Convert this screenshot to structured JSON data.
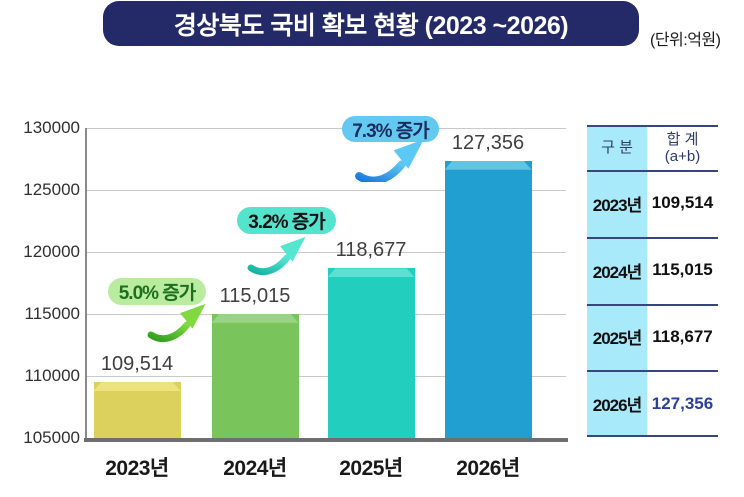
{
  "header": {
    "title": "경상북도 국비 확보 현황 (2023 ~2026)",
    "unit": "(단위:억원)",
    "banner_color": "#232a67"
  },
  "chart_data": {
    "type": "bar",
    "title": "경상북도 국비 확보 현황 (2023 ~2026)",
    "unit_note": "(단위:억원)",
    "categories": [
      "2023년",
      "2024년",
      "2025년",
      "2026년"
    ],
    "values": [
      109514,
      115015,
      118677,
      127356
    ],
    "value_labels": [
      "109,514",
      "115,015",
      "118,677",
      "127,356"
    ],
    "ylim": [
      105000,
      130000
    ],
    "yticks": [
      130000,
      125000,
      120000,
      115000,
      110000,
      105000
    ],
    "grid": true,
    "bar_colors": [
      {
        "body": "#ddd15e",
        "top": "#ece27f"
      },
      {
        "body": "#79c55c",
        "top": "#97d584"
      },
      {
        "body": "#22cfbf",
        "top": "#5de0d2"
      },
      {
        "body": "#219fd1",
        "top": "#63c4e2"
      }
    ],
    "annotations": [
      {
        "text": "5.0% 증가",
        "bubble_bg": "#b9ec9e",
        "text_color": "#1d6f1d",
        "arrow_dark": "#2e9e1f",
        "arrow_light": "#7fd93f"
      },
      {
        "text": "3.2% 증가",
        "bubble_bg": "#54e3cd",
        "text_color": "#111111",
        "arrow_dark": "#12b3a2",
        "arrow_light": "#55e6d2"
      },
      {
        "text": "7.3% 증가",
        "bubble_bg": "#63c9f0",
        "text_color": "#1a2b5e",
        "arrow_dark": "#1976d8",
        "arrow_light": "#5bc8f5"
      }
    ]
  },
  "table": {
    "header": {
      "col1": "구 분",
      "col2_line1": "합 계",
      "col2_line2": "(a+b)"
    },
    "rows": [
      {
        "year": "2023년",
        "value": "109,514",
        "value_color": "#101010"
      },
      {
        "year": "2024년",
        "value": "115,015",
        "value_color": "#101010"
      },
      {
        "year": "2025년",
        "value": "118,677",
        "value_color": "#101010"
      },
      {
        "year": "2026년",
        "value": "127,356",
        "value_color": "#2b3f9e"
      }
    ],
    "col1_bg": "#a9eafa",
    "line_color": "#39457e",
    "header_text_color": "#2e3a6e"
  }
}
